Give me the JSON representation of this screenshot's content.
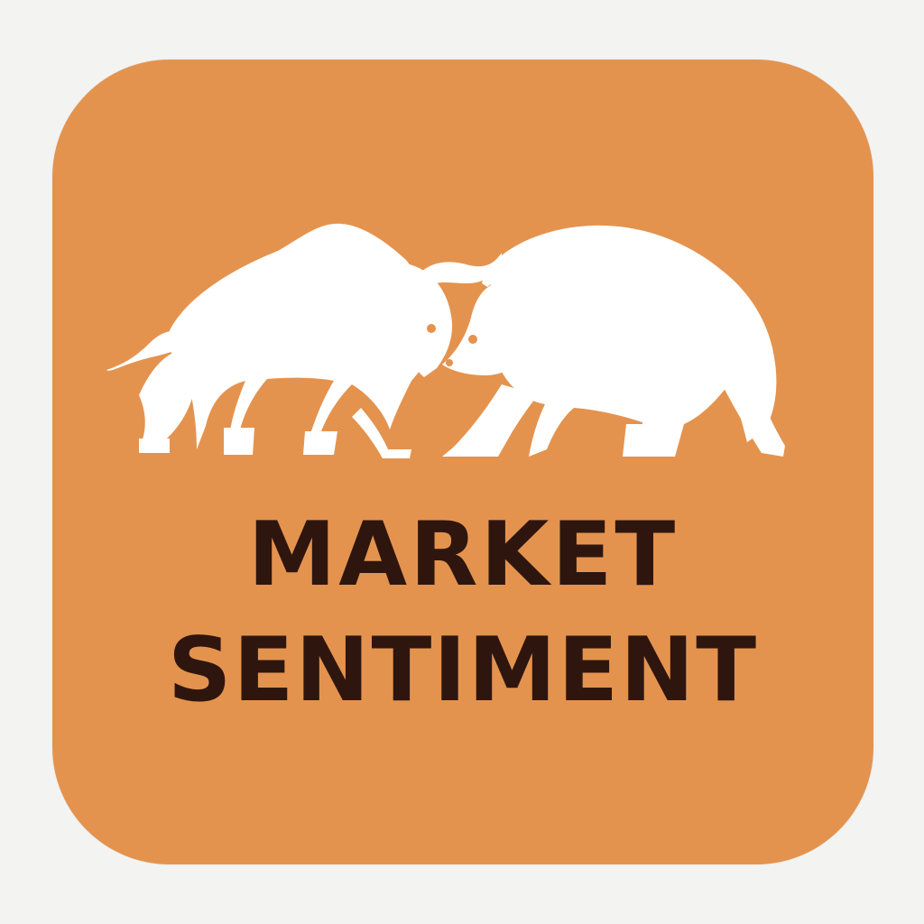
{
  "icon": {
    "title_line_1": "MARKET",
    "title_line_2": "SENTIMENT",
    "figures": [
      "bull-icon",
      "bear-icon"
    ]
  },
  "colors": {
    "page_background": "#f3f3f2",
    "icon_background": "#e4934f",
    "figure_fill": "#ffffff",
    "text": "#2e160e"
  }
}
